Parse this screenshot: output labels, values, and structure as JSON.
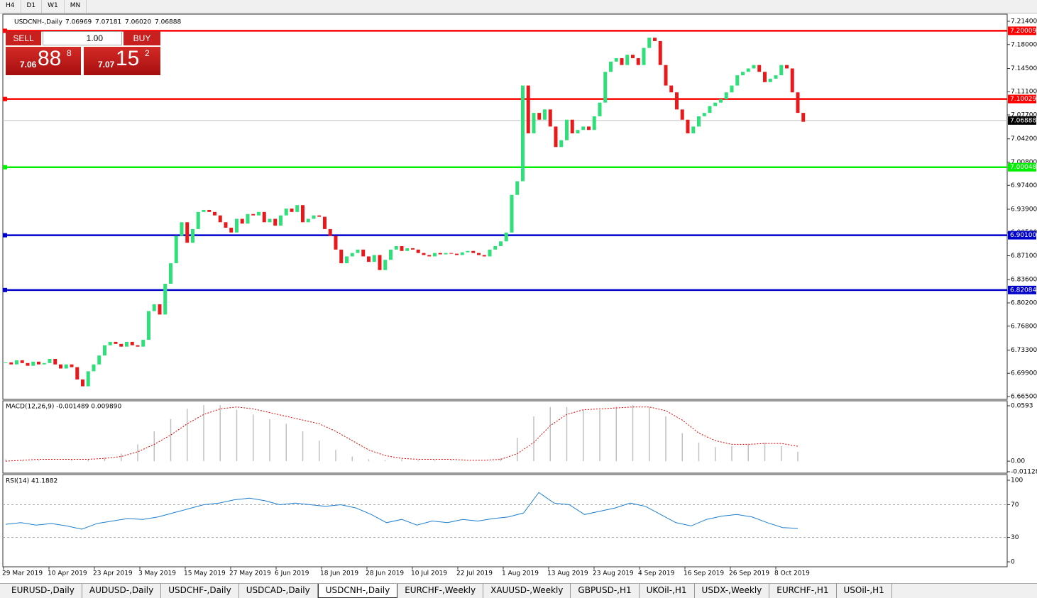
{
  "toolbar": {
    "timeframes": [
      "H4",
      "D1",
      "W1",
      "MN"
    ]
  },
  "trade_panel": {
    "sell": "SELL",
    "buy": "BUY",
    "lot": "1.00",
    "sell_price": {
      "big": "7.06",
      "pips": "88",
      "fraction": "8"
    },
    "buy_price": {
      "big": "7.07",
      "pips": "15",
      "fraction": "2"
    }
  },
  "chart_data": [
    {
      "type": "candlestick",
      "title": "USDCNH-,Daily",
      "ohlc": [
        "7.06969",
        "7.07181",
        "7.06020",
        "7.06888"
      ],
      "up_color": "#2fe07a",
      "down_color": "#e8191b",
      "values": [
        6.715,
        6.712,
        6.718,
        6.714,
        6.71,
        6.716,
        6.712,
        6.714,
        6.72,
        6.712,
        6.706,
        6.712,
        6.708,
        6.69,
        6.68,
        6.702,
        6.712,
        6.725,
        6.74,
        6.745,
        6.742,
        6.738,
        6.745,
        6.74,
        6.738,
        6.748,
        6.79,
        6.8,
        6.785,
        6.83,
        6.86,
        6.9,
        6.92,
        6.89,
        6.91,
        6.935,
        6.938,
        6.935,
        6.93,
        6.92,
        6.912,
        6.905,
        6.925,
        6.918,
        6.932,
        6.93,
        6.935,
        6.92,
        6.925,
        6.915,
        6.93,
        6.94,
        6.935,
        6.945,
        6.92,
        6.925,
        6.93,
        6.928,
        6.91,
        6.9,
        6.88,
        6.86,
        6.87,
        6.875,
        6.88,
        6.87,
        6.862,
        6.872,
        6.85,
        6.865,
        6.88,
        6.885,
        6.878,
        6.882,
        6.88,
        6.875,
        6.872,
        6.87,
        6.875,
        6.873,
        6.875,
        6.874,
        6.872,
        6.876,
        6.878,
        6.875,
        6.872,
        6.87,
        6.88,
        6.885,
        6.892,
        6.905,
        6.96,
        6.98,
        7.12,
        7.05,
        7.08,
        7.07,
        7.085,
        7.06,
        7.03,
        7.04,
        7.07,
        7.05,
        7.055,
        7.06,
        7.055,
        7.075,
        7.095,
        7.14,
        7.155,
        7.16,
        7.15,
        7.165,
        7.16,
        7.15,
        7.175,
        7.19,
        7.185,
        7.15,
        7.12,
        7.11,
        7.085,
        7.07,
        7.05,
        7.06,
        7.075,
        7.08,
        7.09,
        7.095,
        7.1,
        7.11,
        7.12,
        7.135,
        7.14,
        7.145,
        7.15,
        7.14,
        7.125,
        7.13,
        7.135,
        7.15,
        7.145,
        7.11,
        7.08,
        7.067
      ],
      "ylim": [
        6.665,
        7.214
      ],
      "yticks": [
        {
          "value": 7.214,
          "label": "7.21400"
        },
        {
          "value": 7.18,
          "label": "7.18000"
        },
        {
          "value": 7.145,
          "label": "7.14500"
        },
        {
          "value": 7.111,
          "label": "7.11100"
        },
        {
          "value": 7.077,
          "label": "7.07700"
        },
        {
          "value": 7.042,
          "label": "7.04200"
        },
        {
          "value": 7.008,
          "label": "7.00800"
        },
        {
          "value": 6.974,
          "label": "6.97400"
        },
        {
          "value": 6.939,
          "label": "6.93900"
        },
        {
          "value": 6.905,
          "label": "6.90500"
        },
        {
          "value": 6.871,
          "label": "6.87100"
        },
        {
          "value": 6.836,
          "label": "6.83600"
        },
        {
          "value": 6.802,
          "label": "6.80200"
        },
        {
          "value": 6.768,
          "label": "6.76800"
        },
        {
          "value": 6.733,
          "label": "6.73300"
        },
        {
          "value": 6.699,
          "label": "6.69900"
        },
        {
          "value": 6.665,
          "label": "6.66500"
        }
      ],
      "levels": [
        7.20009,
        7.10029,
        7.00048,
        {
          "value": 6.901,
          "label": "6.90100"
        },
        6.82084
      ],
      "level_colors": [
        "#ff0000",
        "#ff0000",
        "#00ee00",
        "#0000cc",
        "#0000cc"
      ],
      "current_price": 7.06888,
      "x_labels": [
        "29 Mar 2019",
        "10 Apr 2019",
        "23 Apr 2019",
        "3 May 2019",
        "15 May 2019",
        "27 May 2019",
        "6 Jun 2019",
        "18 Jun 2019",
        "28 Jun 2019",
        "10 Jul 2019",
        "22 Jul 2019",
        "1 Aug 2019",
        "13 Aug 2019",
        "23 Aug 2019",
        "4 Sep 2019",
        "16 Sep 2019",
        "26 Sep 2019",
        "8 Oct 2019"
      ]
    },
    {
      "type": "macd",
      "title": "MACD(12,26,9) -0.001489 0.009890",
      "hist_color": "#c0c0c0",
      "signal_color": "#e00000",
      "histogram": [
        0.002,
        0.001,
        0.001,
        0.0,
        0.001,
        0.002,
        0.004,
        0.008,
        0.018,
        0.032,
        0.045,
        0.056,
        0.06,
        0.06,
        0.055,
        0.05,
        0.045,
        0.04,
        0.032,
        0.022,
        0.012,
        0.005,
        0.002,
        0.001,
        0.002,
        0.001,
        0.001,
        0.001,
        0.0,
        0.0,
        0.003,
        0.025,
        0.048,
        0.058,
        0.058,
        0.055,
        0.055,
        0.058,
        0.06,
        0.058,
        0.048,
        0.03,
        0.02,
        0.015,
        0.016,
        0.018,
        0.02,
        0.016,
        0.01
      ],
      "signal": [
        0.0,
        0.001,
        0.002,
        0.002,
        0.002,
        0.002,
        0.003,
        0.005,
        0.01,
        0.018,
        0.028,
        0.04,
        0.05,
        0.056,
        0.058,
        0.056,
        0.052,
        0.048,
        0.044,
        0.04,
        0.032,
        0.022,
        0.012,
        0.006,
        0.003,
        0.002,
        0.002,
        0.002,
        0.001,
        0.001,
        0.002,
        0.008,
        0.02,
        0.038,
        0.05,
        0.055,
        0.056,
        0.057,
        0.058,
        0.058,
        0.054,
        0.044,
        0.03,
        0.022,
        0.018,
        0.018,
        0.019,
        0.019,
        0.016
      ],
      "ylim": [
        -0.01128,
        0.0593
      ],
      "yticks": [
        0.0593,
        {
          "value": 0,
          "label": "0.00"
        },
        -0.01128
      ]
    },
    {
      "type": "rsi",
      "title": "RSI(14) 41.1882",
      "color": "#1e7fd0",
      "values": [
        46,
        48,
        45,
        47,
        44,
        40,
        47,
        50,
        53,
        52,
        55,
        60,
        65,
        70,
        72,
        76,
        78,
        75,
        70,
        72,
        70,
        68,
        70,
        66,
        58,
        48,
        52,
        45,
        50,
        48,
        52,
        50,
        53,
        55,
        60,
        85,
        72,
        70,
        58,
        62,
        66,
        72,
        68,
        58,
        48,
        44,
        52,
        56,
        58,
        55,
        48,
        42,
        41
      ],
      "ylim": [
        0,
        100
      ],
      "yticks": [
        100,
        70,
        30,
        0
      ]
    }
  ],
  "tabs": [
    "EURUSD-,Daily",
    "AUDUSD-,Daily",
    "USDCHF-,Daily",
    "USDCAD-,Daily",
    "USDCNH-,Daily",
    "EURCHF-,Weekly",
    "XAUUSD-,Weekly",
    "GBPUSD-,H1",
    "UKOil-,H1",
    "USDX-,Weekly",
    "EURCHF-,H1",
    "USOil-,H1"
  ],
  "active_tab": 4
}
